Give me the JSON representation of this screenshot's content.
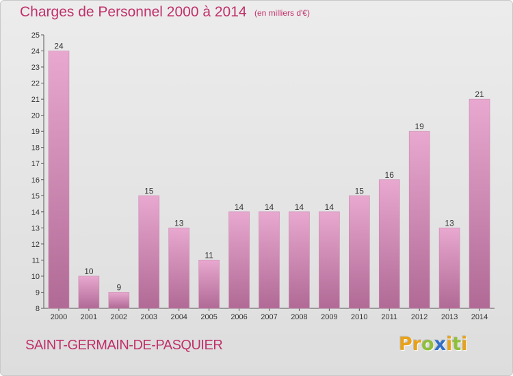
{
  "header": {
    "title": "Charges de Personnel 2000 à 2014",
    "subtitle": "(en milliers d'€)"
  },
  "footer": {
    "commune": "SAINT-GERMAIN-DE-PASQUIER",
    "logo_letters": [
      "P",
      "r",
      "o",
      "x",
      "i",
      "t",
      "i"
    ]
  },
  "colors": {
    "title": "#c0306a",
    "bar_top": "#e8a8cf",
    "bar_bottom": "#b06a95",
    "axis": "#555555",
    "logo": [
      "#e8a21a",
      "#e8a21a",
      "#8fbf3a",
      "#2f6fc9",
      "#e8a21a",
      "#8fbf3a",
      "#e8a21a"
    ]
  },
  "chart_data": {
    "type": "bar",
    "title": "Charges de Personnel 2000 à 2014",
    "subtitle": "(en milliers d'€)",
    "categories": [
      "2000",
      "2001",
      "2002",
      "2003",
      "2004",
      "2005",
      "2006",
      "2007",
      "2008",
      "2009",
      "2010",
      "2011",
      "2012",
      "2013",
      "2014"
    ],
    "values": [
      24,
      10,
      9,
      15,
      13,
      11,
      14,
      14,
      14,
      14,
      15,
      16,
      19,
      13,
      21
    ],
    "ylim": [
      8,
      25
    ],
    "yticks": [
      8,
      9,
      10,
      11,
      12,
      13,
      14,
      15,
      16,
      17,
      18,
      19,
      20,
      21,
      22,
      23,
      24,
      25
    ],
    "grid": false,
    "data_labels": true
  }
}
